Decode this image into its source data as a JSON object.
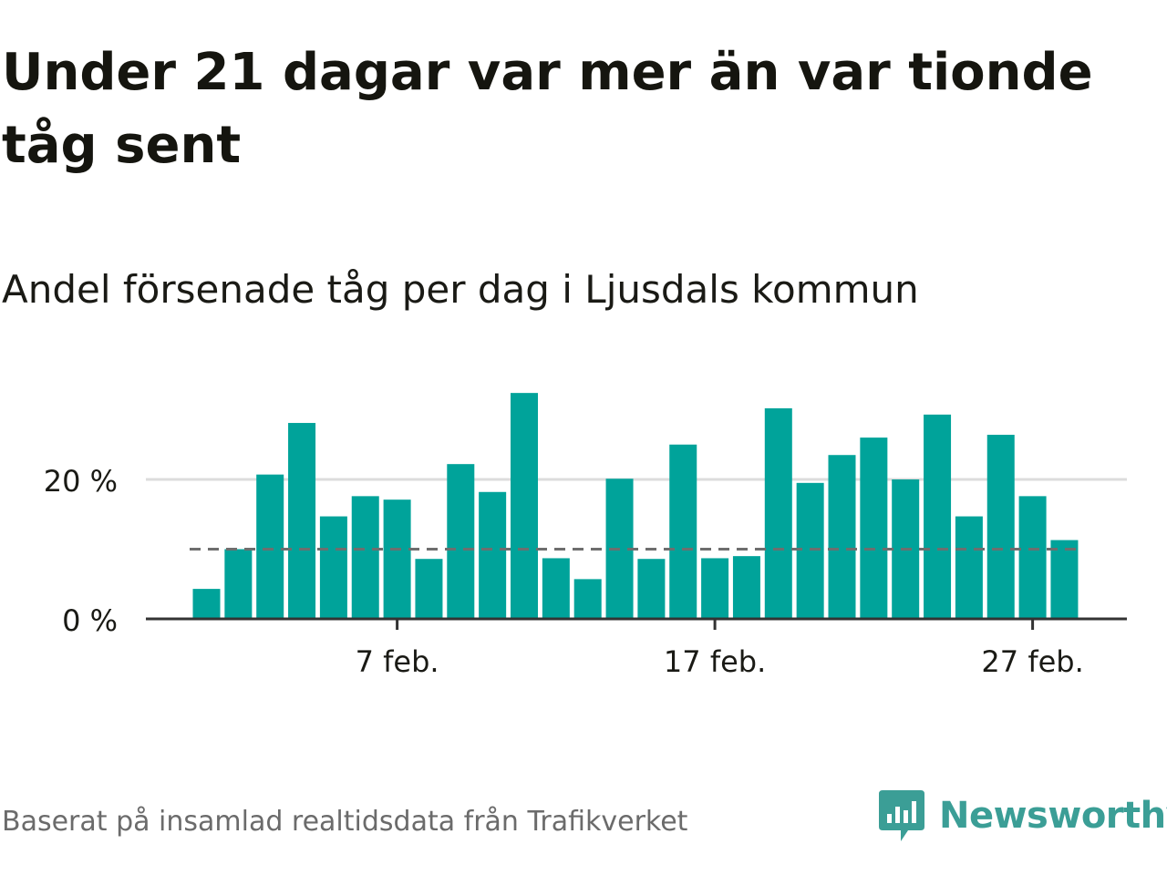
{
  "header": {
    "title": "Under 21 dagar var mer än var tionde tåg sent",
    "subtitle": "Andel försenade tåg per dag i Ljusdals kommun"
  },
  "footer": {
    "source": "Baserat på insamlad realtidsdata från Trafikverket",
    "brand": "Newsworthy"
  },
  "colors": {
    "bar": "#00a39a",
    "reference_line": "#6e6e6e",
    "gridline": "#dcdcdc",
    "axis": "#333333",
    "brand": "#3b9e96"
  },
  "chart_data": {
    "type": "bar",
    "x": [
      "2026-02-01",
      "2026-02-02",
      "2026-02-03",
      "2026-02-04",
      "2026-02-05",
      "2026-02-06",
      "2026-02-07",
      "2026-02-08",
      "2026-02-09",
      "2026-02-10",
      "2026-02-11",
      "2026-02-12",
      "2026-02-13",
      "2026-02-14",
      "2026-02-15",
      "2026-02-16",
      "2026-02-17",
      "2026-02-18",
      "2026-02-19",
      "2026-02-20",
      "2026-02-21",
      "2026-02-22",
      "2026-02-23",
      "2026-02-24",
      "2026-02-25",
      "2026-02-26",
      "2026-02-27",
      "2026-02-28"
    ],
    "values": [
      4.3,
      10.0,
      20.7,
      28.1,
      14.7,
      17.6,
      17.1,
      8.6,
      22.2,
      18.2,
      32.4,
      8.7,
      5.7,
      20.1,
      8.6,
      25.0,
      8.7,
      9.0,
      30.2,
      19.5,
      23.5,
      26.0,
      20.0,
      29.3,
      14.7,
      26.4,
      17.6,
      11.3
    ],
    "reference_line": 10,
    "yticks": [
      {
        "value": 0,
        "label": "0 %"
      },
      {
        "value": 20,
        "label": "20 %"
      }
    ],
    "xticks": [
      {
        "x": "2026-02-07",
        "label": "7 feb."
      },
      {
        "x": "2026-02-17",
        "label": "17 feb."
      },
      {
        "x": "2026-02-27",
        "label": "27 feb."
      }
    ],
    "ylim": [
      0,
      35
    ],
    "grid": true
  }
}
